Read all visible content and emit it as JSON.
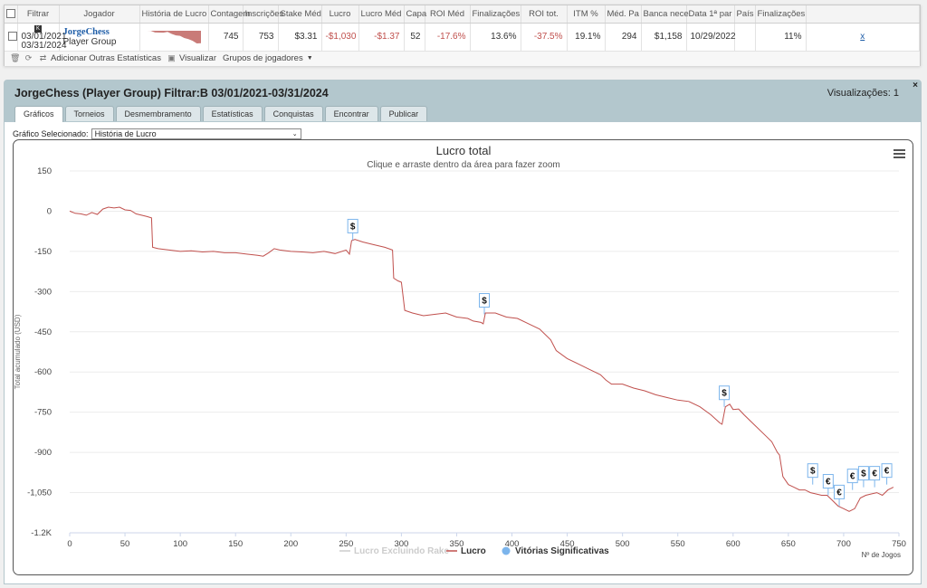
{
  "summary": {
    "headers": [
      "Filtrar",
      "Jogador",
      "História de Lucro",
      "Contagem",
      "Inscrições",
      "Stake Méd",
      "Lucro",
      "Lucro Méd",
      "Capa",
      "ROI Méd",
      "Finalizações",
      "ROI tot.",
      "ITM %",
      "Méd. Pa",
      "Banca nece",
      "Data 1ª par",
      "País",
      "Finalizações"
    ],
    "row": {
      "site_icon": "K",
      "date_from": "03/01/2021",
      "date_to": "03/31/2024",
      "player_name": "JorgeChess",
      "player_group": "Player Group",
      "count": "745",
      "entries": "753",
      "avg_stake": "$3.31",
      "profit": "-$1,030",
      "avg_profit": "-$1.37",
      "cap": "52",
      "avg_roi": "-17.6%",
      "finals": "13.6%",
      "total_roi": "-37.5%",
      "itm": "19.1%",
      "avg_pa": "294",
      "bankroll": "$1,158",
      "first_date": "10/29/2022",
      "country": "",
      "finals2": "11%",
      "remove": "x"
    },
    "sparkline": [
      0,
      -5,
      -140,
      -150,
      -155,
      -100,
      -260,
      -380,
      -420,
      -600,
      -700,
      -830,
      -1050,
      -1030
    ],
    "toolbar": {
      "add_stats": "Adicionar Outras Estatísticas",
      "visualize": "Visualizar",
      "groups": "Grupos de jogadores"
    }
  },
  "panel": {
    "title": "JorgeChess (Player Group) Filtrar:B 03/01/2021-03/31/2024",
    "views": "Visualizações: 1",
    "close": "×",
    "tabs": [
      "Gráficos",
      "Torneios",
      "Desmembramento",
      "Estatísticas",
      "Conquistas",
      "Encontrar",
      "Publicar"
    ],
    "active_tab": 0,
    "chart_select_label": "Gráfico Selecionado:",
    "chart_select_value": "História de Lucro",
    "menu_icon": "hamburger-menu-icon"
  },
  "chart_data": {
    "type": "line",
    "title": "Lucro total",
    "subtitle": "Clique e arraste dentro da área para fazer zoom",
    "ylabel": "Total acumulado (USD)",
    "xlabel": "Nº de Jogos",
    "xlim": [
      0,
      750
    ],
    "ylim": [
      -1200,
      150
    ],
    "x_ticks": [
      0,
      50,
      100,
      150,
      200,
      250,
      300,
      350,
      400,
      450,
      500,
      550,
      600,
      650,
      700,
      750
    ],
    "y_ticks": [
      150,
      0,
      -150,
      -300,
      -450,
      -600,
      -750,
      -900,
      -1050,
      -1200
    ],
    "y_tick_labels": [
      "150",
      "0",
      "-150",
      "-300",
      "-450",
      "-600",
      "-750",
      "-900",
      "-1,050",
      "-1.2K"
    ],
    "grid": true,
    "legend_placement": "bottom-center",
    "legend": [
      {
        "name": "Lucro Excluindo Rake",
        "color": "#cccccc",
        "kind": "line"
      },
      {
        "name": "Lucro",
        "color": "#c0504d",
        "kind": "line"
      },
      {
        "name": "Vitórias Significativas",
        "color": "#7cb5ec",
        "kind": "dot"
      }
    ],
    "series": [
      {
        "name": "Lucro",
        "color": "#c0504d",
        "points": [
          [
            0,
            0
          ],
          [
            5,
            -8
          ],
          [
            10,
            -10
          ],
          [
            15,
            -15
          ],
          [
            20,
            -5
          ],
          [
            25,
            -12
          ],
          [
            30,
            8
          ],
          [
            35,
            15
          ],
          [
            40,
            12
          ],
          [
            45,
            15
          ],
          [
            50,
            5
          ],
          [
            55,
            3
          ],
          [
            60,
            -10
          ],
          [
            65,
            -15
          ],
          [
            70,
            -20
          ],
          [
            74,
            -25
          ],
          [
            75,
            -135
          ],
          [
            80,
            -140
          ],
          [
            90,
            -145
          ],
          [
            100,
            -150
          ],
          [
            110,
            -148
          ],
          [
            120,
            -152
          ],
          [
            130,
            -150
          ],
          [
            140,
            -155
          ],
          [
            150,
            -155
          ],
          [
            160,
            -160
          ],
          [
            170,
            -165
          ],
          [
            175,
            -168
          ],
          [
            180,
            -155
          ],
          [
            185,
            -140
          ],
          [
            190,
            -145
          ],
          [
            200,
            -150
          ],
          [
            210,
            -152
          ],
          [
            220,
            -155
          ],
          [
            230,
            -150
          ],
          [
            240,
            -158
          ],
          [
            250,
            -145
          ],
          [
            253,
            -160
          ],
          [
            255,
            -110
          ],
          [
            258,
            -105
          ],
          [
            265,
            -115
          ],
          [
            275,
            -125
          ],
          [
            285,
            -135
          ],
          [
            292,
            -145
          ],
          [
            293,
            -250
          ],
          [
            297,
            -260
          ],
          [
            300,
            -265
          ],
          [
            303,
            -370
          ],
          [
            310,
            -380
          ],
          [
            320,
            -390
          ],
          [
            330,
            -385
          ],
          [
            340,
            -380
          ],
          [
            350,
            -395
          ],
          [
            360,
            -400
          ],
          [
            365,
            -410
          ],
          [
            372,
            -415
          ],
          [
            374,
            -420
          ],
          [
            376,
            -380
          ],
          [
            385,
            -380
          ],
          [
            395,
            -395
          ],
          [
            405,
            -400
          ],
          [
            415,
            -420
          ],
          [
            425,
            -440
          ],
          [
            435,
            -480
          ],
          [
            440,
            -520
          ],
          [
            450,
            -550
          ],
          [
            460,
            -570
          ],
          [
            470,
            -590
          ],
          [
            480,
            -610
          ],
          [
            485,
            -630
          ],
          [
            490,
            -645
          ],
          [
            500,
            -645
          ],
          [
            510,
            -660
          ],
          [
            520,
            -670
          ],
          [
            530,
            -685
          ],
          [
            540,
            -695
          ],
          [
            550,
            -705
          ],
          [
            560,
            -710
          ],
          [
            570,
            -730
          ],
          [
            580,
            -760
          ],
          [
            588,
            -790
          ],
          [
            590,
            -795
          ],
          [
            593,
            -730
          ],
          [
            597,
            -720
          ],
          [
            600,
            -740
          ],
          [
            605,
            -738
          ],
          [
            610,
            -760
          ],
          [
            620,
            -800
          ],
          [
            630,
            -840
          ],
          [
            635,
            -860
          ],
          [
            640,
            -900
          ],
          [
            642,
            -910
          ],
          [
            645,
            -990
          ],
          [
            650,
            -1020
          ],
          [
            655,
            -1030
          ],
          [
            660,
            -1040
          ],
          [
            665,
            -1040
          ],
          [
            670,
            -1050
          ],
          [
            675,
            -1055
          ],
          [
            680,
            -1060
          ],
          [
            685,
            -1060
          ],
          [
            690,
            -1080
          ],
          [
            695,
            -1100
          ],
          [
            700,
            -1110
          ],
          [
            705,
            -1120
          ],
          [
            710,
            -1110
          ],
          [
            715,
            -1070
          ],
          [
            720,
            -1060
          ],
          [
            725,
            -1055
          ],
          [
            730,
            -1050
          ],
          [
            735,
            -1060
          ],
          [
            740,
            -1040
          ],
          [
            745,
            -1030
          ]
        ]
      }
    ],
    "markers": [
      {
        "x": 256,
        "y": -108,
        "symbol": "$"
      },
      {
        "x": 375,
        "y": -385,
        "symbol": "$"
      },
      {
        "x": 592,
        "y": -730,
        "symbol": "$"
      },
      {
        "x": 672,
        "y": -1020,
        "symbol": "$"
      },
      {
        "x": 686,
        "y": -1060,
        "symbol": "€"
      },
      {
        "x": 696,
        "y": -1100,
        "symbol": "€"
      },
      {
        "x": 708,
        "y": -1040,
        "symbol": "€"
      },
      {
        "x": 718,
        "y": -1030,
        "symbol": "$"
      },
      {
        "x": 728,
        "y": -1030,
        "symbol": "€"
      },
      {
        "x": 739,
        "y": -1020,
        "symbol": "€"
      }
    ]
  }
}
